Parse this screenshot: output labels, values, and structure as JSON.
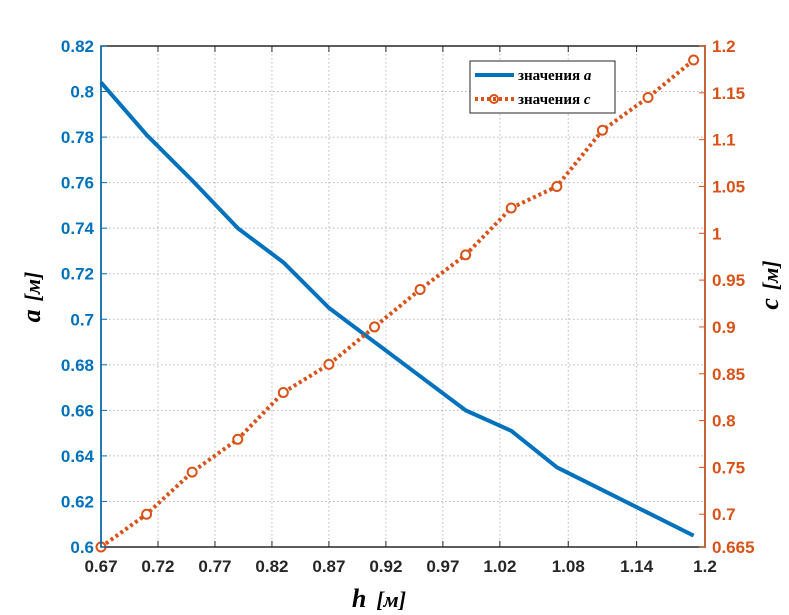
{
  "chart_data": {
    "type": "line",
    "title": "",
    "x": [
      0.67,
      0.71,
      0.75,
      0.79,
      0.83,
      0.87,
      0.91,
      0.95,
      0.99,
      1.03,
      1.07,
      1.11,
      1.15,
      1.19
    ],
    "x_ticks": [
      "0.67",
      "0.72",
      "0.77",
      "0.82",
      "0.87",
      "0.92",
      "0.97",
      "1.02",
      "1.08",
      "1.14",
      "1.2"
    ],
    "x_tick_values": [
      0.67,
      0.72,
      0.77,
      0.82,
      0.87,
      0.92,
      0.97,
      1.02,
      1.08,
      1.14,
      1.2
    ],
    "xlim": [
      0.67,
      1.2
    ],
    "xlabel": {
      "main": "h",
      "unit": "[м]"
    },
    "ylabel_left": {
      "main": "a",
      "unit": "[м]"
    },
    "ylabel_right": {
      "main": "c",
      "unit": "[м]"
    },
    "ylim_left": [
      0.6,
      0.82
    ],
    "ylim_right": [
      0.665,
      1.2
    ],
    "y_ticks_left": [
      "0.6",
      "0.62",
      "0.64",
      "0.66",
      "0.68",
      "0.7",
      "0.72",
      "0.74",
      "0.76",
      "0.78",
      "0.8",
      "0.82"
    ],
    "y_tick_values_left": [
      0.6,
      0.62,
      0.64,
      0.66,
      0.68,
      0.7,
      0.72,
      0.74,
      0.76,
      0.78,
      0.8,
      0.82
    ],
    "y_ticks_right": [
      "0.665",
      "0.7",
      "0.75",
      "0.8",
      "0.85",
      "0.9",
      "0.95",
      "1",
      "1.05",
      "1.1",
      "1.15",
      "1.2"
    ],
    "y_tick_values_right": [
      0.665,
      0.7,
      0.75,
      0.8,
      0.85,
      0.9,
      0.95,
      1.0,
      1.05,
      1.1,
      1.15,
      1.2
    ],
    "grid": true,
    "legend_position": "top-right",
    "series": [
      {
        "name": "значения a",
        "axis": "left",
        "style": "solid",
        "color": "#0072bd",
        "values": [
          0.804,
          0.781,
          0.761,
          0.74,
          0.725,
          0.705,
          0.69,
          0.675,
          0.66,
          0.651,
          0.635,
          0.625,
          0.615,
          0.605
        ]
      },
      {
        "name": "значения c",
        "axis": "right",
        "style": "dotted-circle",
        "color": "#d95319",
        "values": [
          0.665,
          0.7,
          0.745,
          0.78,
          0.83,
          0.86,
          0.9,
          0.94,
          0.977,
          1.027,
          1.05,
          1.11,
          1.145,
          1.185
        ]
      }
    ],
    "legend": {
      "a_prefix": "значения ",
      "a_var": "a",
      "c_prefix": "значения ",
      "c_var": "c"
    }
  }
}
